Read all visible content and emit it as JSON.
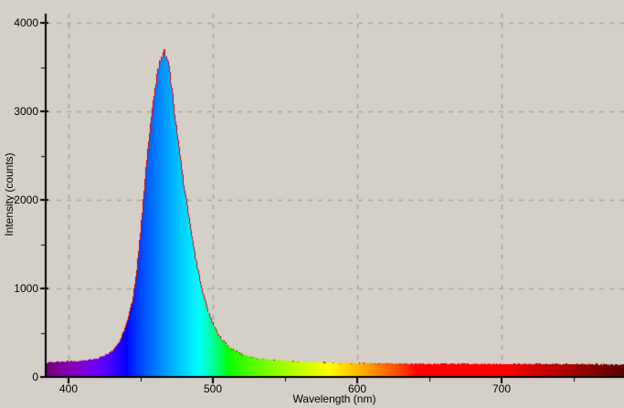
{
  "colors": {
    "background": "#d4d0c8",
    "gridline": "#a8a6a0",
    "axis": "#000000",
    "text": "#000000",
    "trace_line": "#e60000"
  },
  "chart_data": {
    "type": "area",
    "title": "",
    "xlabel": "Wavelength (nm)",
    "ylabel": "Intensity (counts)",
    "xlim": [
      384,
      784
    ],
    "ylim": [
      0,
      4100
    ],
    "grid": {
      "show": true,
      "style": "dashed"
    },
    "x_major_ticks": [
      400,
      500,
      600,
      700
    ],
    "x_minor_ticks": [
      450,
      550,
      650,
      750
    ],
    "y_major_ticks": [
      0,
      1000,
      2000,
      3000,
      4000
    ],
    "y_minor_ticks": [
      500,
      1500,
      2500,
      3500
    ],
    "fill": "spectral-wavelength-gradient",
    "peak": {
      "wavelength_nm": 466,
      "intensity_counts": 3670
    },
    "baseline_intensity_counts": 160,
    "series": [
      {
        "name": "spectrum",
        "points": [
          [
            384,
            165
          ],
          [
            392,
            170
          ],
          [
            400,
            175
          ],
          [
            408,
            183
          ],
          [
            414,
            195
          ],
          [
            420,
            215
          ],
          [
            425,
            245
          ],
          [
            429,
            285
          ],
          [
            432,
            335
          ],
          [
            435,
            410
          ],
          [
            438,
            520
          ],
          [
            441,
            690
          ],
          [
            444,
            880
          ],
          [
            446,
            1100
          ],
          [
            448,
            1400
          ],
          [
            450,
            1750
          ],
          [
            452,
            2150
          ],
          [
            455,
            2650
          ],
          [
            458,
            3100
          ],
          [
            461,
            3420
          ],
          [
            463,
            3570
          ],
          [
            465,
            3660
          ],
          [
            466,
            3670
          ],
          [
            467,
            3640
          ],
          [
            469,
            3500
          ],
          [
            471,
            3250
          ],
          [
            473,
            2950
          ],
          [
            475,
            2700
          ],
          [
            477,
            2450
          ],
          [
            479,
            2200
          ],
          [
            481,
            2000
          ],
          [
            484,
            1680
          ],
          [
            486,
            1480
          ],
          [
            488,
            1290
          ],
          [
            490,
            1130
          ],
          [
            492,
            990
          ],
          [
            495,
            800
          ],
          [
            498,
            660
          ],
          [
            500,
            580
          ],
          [
            503,
            490
          ],
          [
            506,
            425
          ],
          [
            510,
            355
          ],
          [
            514,
            305
          ],
          [
            518,
            270
          ],
          [
            523,
            240
          ],
          [
            528,
            220
          ],
          [
            534,
            205
          ],
          [
            542,
            192
          ],
          [
            550,
            183
          ],
          [
            560,
            174
          ],
          [
            572,
            166
          ],
          [
            590,
            158
          ],
          [
            610,
            154
          ],
          [
            640,
            151
          ],
          [
            670,
            149
          ],
          [
            700,
            148
          ],
          [
            730,
            147
          ],
          [
            760,
            145
          ],
          [
            779,
            142
          ],
          [
            784,
            138
          ]
        ]
      }
    ]
  }
}
